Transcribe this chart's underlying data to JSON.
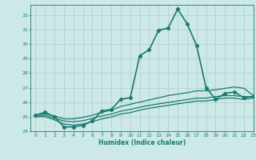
{
  "title": "",
  "xlabel": "Humidex (Indice chaleur)",
  "ylabel": "",
  "bg_color": "#cce9e8",
  "grid_color": "#b0cccc",
  "line_color": "#1a7a6e",
  "xlim": [
    -0.5,
    23
  ],
  "ylim": [
    24,
    32.7
  ],
  "yticks": [
    24,
    25,
    26,
    27,
    28,
    29,
    30,
    31,
    32
  ],
  "xticks": [
    0,
    1,
    2,
    3,
    4,
    5,
    6,
    7,
    8,
    9,
    10,
    11,
    12,
    13,
    14,
    15,
    16,
    17,
    18,
    19,
    20,
    21,
    22,
    23
  ],
  "series": [
    {
      "x": [
        0,
        1,
        2,
        3,
        4,
        5,
        6,
        7,
        8,
        9,
        10,
        11,
        12,
        13,
        14,
        15,
        16,
        17,
        18,
        19,
        20,
        21,
        22,
        23
      ],
      "y": [
        25.1,
        25.3,
        25.0,
        24.3,
        24.3,
        24.4,
        24.7,
        25.4,
        25.5,
        26.2,
        26.3,
        29.2,
        29.6,
        30.95,
        31.1,
        32.4,
        31.4,
        29.9,
        27.0,
        26.2,
        26.6,
        26.7,
        26.3,
        26.4
      ],
      "marker": "D",
      "markersize": 2.2,
      "linewidth": 1.2,
      "zorder": 5
    },
    {
      "x": [
        0,
        1,
        2,
        3,
        4,
        5,
        6,
        7,
        8,
        9,
        10,
        11,
        12,
        13,
        14,
        15,
        16,
        17,
        18,
        19,
        20,
        21,
        22,
        23
      ],
      "y": [
        25.1,
        25.2,
        25.05,
        24.85,
        24.85,
        24.95,
        25.1,
        25.3,
        25.45,
        25.7,
        25.85,
        26.0,
        26.15,
        26.3,
        26.45,
        26.55,
        26.65,
        26.78,
        26.78,
        26.85,
        26.95,
        27.05,
        26.95,
        26.45
      ],
      "marker": "None",
      "markersize": 0,
      "linewidth": 0.9,
      "zorder": 3
    },
    {
      "x": [
        0,
        1,
        2,
        3,
        4,
        5,
        6,
        7,
        8,
        9,
        10,
        11,
        12,
        13,
        14,
        15,
        16,
        17,
        18,
        19,
        20,
        21,
        22,
        23
      ],
      "y": [
        25.0,
        25.1,
        24.9,
        24.7,
        24.65,
        24.72,
        24.88,
        25.05,
        25.18,
        25.38,
        25.5,
        25.65,
        25.78,
        25.88,
        25.98,
        26.08,
        26.18,
        26.28,
        26.28,
        26.38,
        26.45,
        26.45,
        26.38,
        26.38
      ],
      "marker": "None",
      "markersize": 0,
      "linewidth": 0.9,
      "zorder": 3
    },
    {
      "x": [
        0,
        1,
        2,
        3,
        4,
        5,
        6,
        7,
        8,
        9,
        10,
        11,
        12,
        13,
        14,
        15,
        16,
        17,
        18,
        19,
        20,
        21,
        22,
        23
      ],
      "y": [
        25.0,
        25.0,
        24.78,
        24.5,
        24.42,
        24.5,
        24.65,
        24.85,
        24.98,
        25.18,
        25.28,
        25.45,
        25.58,
        25.68,
        25.78,
        25.88,
        25.98,
        26.08,
        26.08,
        26.18,
        26.28,
        26.28,
        26.18,
        26.28
      ],
      "marker": "None",
      "markersize": 0,
      "linewidth": 0.9,
      "zorder": 3
    }
  ]
}
